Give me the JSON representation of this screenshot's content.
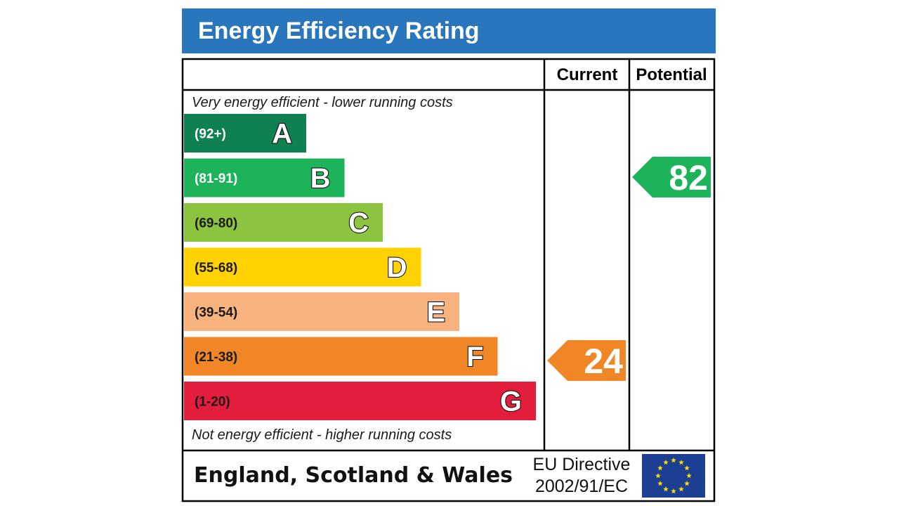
{
  "title": "Energy Efficiency Rating",
  "headers": {
    "current": "Current",
    "potential": "Potential"
  },
  "notes": {
    "top": "Very energy efficient - lower running costs",
    "bottom": "Not energy efficient - higher running costs"
  },
  "footer": {
    "region": "England, Scotland & Wales",
    "directive_line1": "EU Directive",
    "directive_line2": "2002/91/EC"
  },
  "colors": {
    "title_bar": "#2a76bd",
    "eu_flag": "#1c3f94",
    "eu_stars": "#ffdd00"
  },
  "chart_data": {
    "type": "bar",
    "title": "Energy Efficiency Rating",
    "categories": [
      "A",
      "B",
      "C",
      "D",
      "E",
      "F",
      "G"
    ],
    "ranges": [
      "(92+)",
      "(81-91)",
      "(69-80)",
      "(55-68)",
      "(39-54)",
      "(21-38)",
      "(1-20)"
    ],
    "band_colors": [
      "#0f8050",
      "#1db35a",
      "#8cc43f",
      "#ffd200",
      "#f8b27d",
      "#f08626",
      "#e31d3c"
    ],
    "range_text_colors": [
      "#ffffff",
      "#ffffff",
      "#1a1a1a",
      "#1a1a1a",
      "#1a1a1a",
      "#1a1a1a",
      "#1a1a1a"
    ],
    "current": {
      "value": 24,
      "band": "F"
    },
    "potential": {
      "value": 82,
      "band": "B"
    }
  }
}
